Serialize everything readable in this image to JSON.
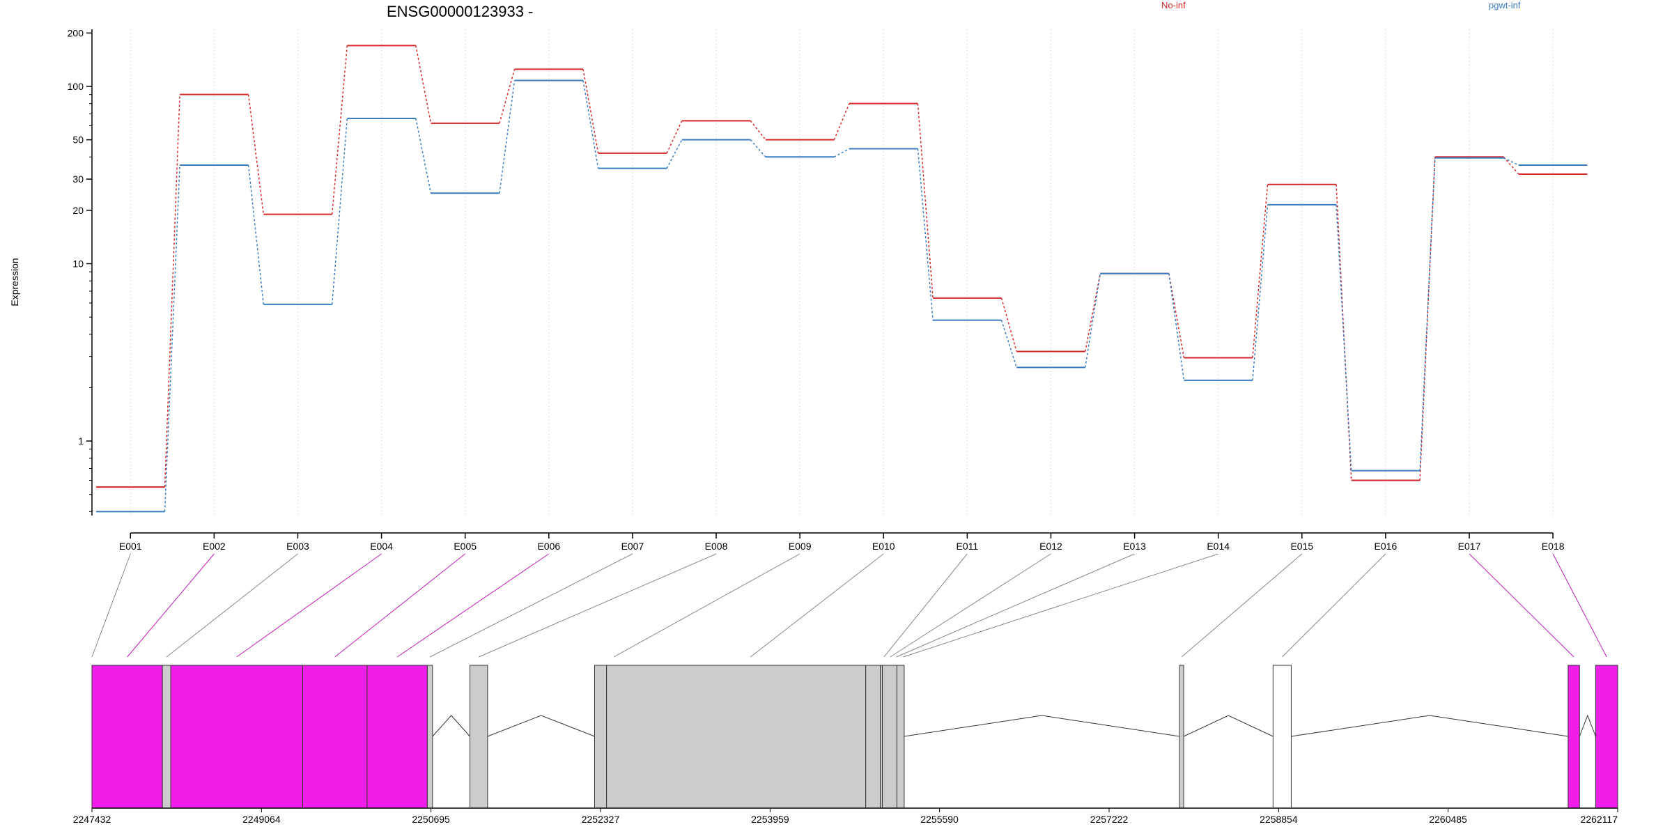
{
  "chart_data": {
    "type": "line",
    "title": "ENSG00000123933 -",
    "ylabel": "Expression",
    "yscale": "log",
    "ylim": [
      0.38,
      210
    ],
    "yticks": [
      1,
      10,
      20,
      30,
      50,
      100,
      200
    ],
    "categories": [
      "E001",
      "E002",
      "E003",
      "E004",
      "E005",
      "E006",
      "E007",
      "E008",
      "E009",
      "E010",
      "E011",
      "E012",
      "E013",
      "E014",
      "E015",
      "E016",
      "E017",
      "E018"
    ],
    "series": [
      {
        "name": "No-inf",
        "color": "#d62728",
        "values": [
          0.55,
          90,
          19,
          170,
          62,
          125,
          42,
          64,
          50,
          80,
          6.4,
          3.2,
          8.8,
          2.95,
          28,
          0.6,
          40,
          32
        ]
      },
      {
        "name": "pgwt-inf",
        "color": "#3a7cc1",
        "values": [
          0.4,
          36,
          5.9,
          66,
          25,
          108,
          34.5,
          50,
          40,
          44.5,
          4.8,
          2.6,
          8.8,
          2.2,
          21.5,
          0.68,
          39.5,
          36
        ]
      }
    ],
    "legend": "top-right",
    "grid": "vertical-dotted",
    "gene_model": {
      "coord_ticks": [
        "2247432",
        "2249064",
        "2250695",
        "2252327",
        "2253959",
        "2255590",
        "2257222",
        "2258854",
        "2260485",
        "2262117"
      ],
      "coord_range": [
        2247432,
        2262117
      ],
      "exons": [
        {
          "start": 2247432,
          "end": 2248110,
          "fill": "#f01ee8"
        },
        {
          "start": 2248110,
          "end": 2248190,
          "fill": "#cccccc"
        },
        {
          "start": 2248190,
          "end": 2249460,
          "fill": "#f01ee8"
        },
        {
          "start": 2249460,
          "end": 2250080,
          "fill": "#f01ee8"
        },
        {
          "start": 2250080,
          "end": 2250660,
          "fill": "#f01ee8"
        },
        {
          "start": 2250660,
          "end": 2250710,
          "fill": "#cccccc"
        },
        {
          "start": 2251070,
          "end": 2251240,
          "fill": "#cccccc"
        },
        {
          "start": 2252270,
          "end": 2252385,
          "fill": "#cccccc"
        },
        {
          "start": 2252385,
          "end": 2254880,
          "fill": "#cccccc"
        },
        {
          "start": 2254880,
          "end": 2255020,
          "fill": "#cccccc"
        },
        {
          "start": 2255020,
          "end": 2255040,
          "fill": "#cccccc"
        },
        {
          "start": 2255040,
          "end": 2255180,
          "fill": "#cccccc"
        },
        {
          "start": 2255180,
          "end": 2255250,
          "fill": "#cccccc"
        },
        {
          "start": 2257900,
          "end": 2257940,
          "fill": "#cccccc"
        },
        {
          "start": 2258800,
          "end": 2258975,
          "fill": "#ffffff"
        },
        {
          "start": 2261640,
          "end": 2261750,
          "fill": "#f01ee8"
        },
        {
          "start": 2261905,
          "end": 2262117,
          "fill": "#f01ee8"
        }
      ],
      "introns": [
        [
          2250710,
          2251070
        ],
        [
          2251240,
          2252270
        ],
        [
          2255250,
          2257900
        ],
        [
          2257940,
          2258800
        ],
        [
          2258975,
          2261640
        ],
        [
          2261750,
          2261905
        ]
      ],
      "exon_links": [
        {
          "pos": 2247432,
          "color": "#888888"
        },
        {
          "pos": 2247772,
          "color": "#c21cb8"
        },
        {
          "pos": 2248150,
          "color": "#888888"
        },
        {
          "pos": 2248825,
          "color": "#c21cb8"
        },
        {
          "pos": 2249770,
          "color": "#c21cb8"
        },
        {
          "pos": 2250370,
          "color": "#c21cb8"
        },
        {
          "pos": 2250685,
          "color": "#888888"
        },
        {
          "pos": 2251155,
          "color": "#888888"
        },
        {
          "pos": 2252455,
          "color": "#888888"
        },
        {
          "pos": 2253770,
          "color": "#888888"
        },
        {
          "pos": 2255055,
          "color": "#888888"
        },
        {
          "pos": 2255115,
          "color": "#888888"
        },
        {
          "pos": 2255175,
          "color": "#888888"
        },
        {
          "pos": 2255240,
          "color": "#888888"
        },
        {
          "pos": 2257920,
          "color": "#888888"
        },
        {
          "pos": 2258888,
          "color": "#888888"
        },
        {
          "pos": 2261695,
          "color": "#c21cb8"
        },
        {
          "pos": 2262011,
          "color": "#c21cb8"
        }
      ]
    }
  }
}
